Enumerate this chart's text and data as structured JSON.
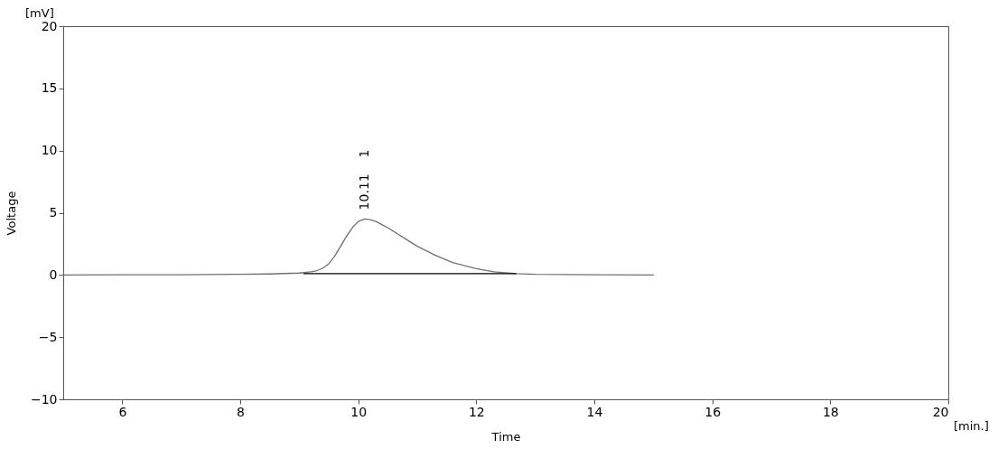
{
  "chart_data": {
    "type": "line",
    "xlabel": "Time",
    "ylabel": "Voltage",
    "xlim": [
      5,
      20
    ],
    "xticks": [
      6,
      8,
      10,
      12,
      14,
      16,
      18,
      20
    ],
    "ylim": [
      -10,
      20
    ],
    "yticks": [
      -10,
      -5,
      0,
      5,
      10,
      15,
      20
    ],
    "grid": false,
    "marker": "none",
    "line_style": "solid",
    "series": [
      {
        "color": "#707070",
        "x": [
          5,
          6,
          7,
          8,
          8.5,
          9,
          9.2,
          9.3,
          9.4,
          9.5,
          9.6,
          9.7,
          9.8,
          9.9,
          10.0,
          10.11,
          10.2,
          10.3,
          10.4,
          10.5,
          10.65,
          10.8,
          11.0,
          11.3,
          11.6,
          12.0,
          12.3,
          12.67,
          13,
          14,
          15
        ],
        "values": [
          0,
          0.01,
          0.02,
          0.05,
          0.08,
          0.15,
          0.25,
          0.35,
          0.55,
          0.9,
          1.5,
          2.3,
          3.1,
          3.8,
          4.3,
          4.5,
          4.45,
          4.3,
          4.05,
          3.8,
          3.35,
          2.9,
          2.3,
          1.6,
          1.0,
          0.5,
          0.25,
          0.1,
          0.05,
          0.02,
          0
        ]
      },
      {
        "color": "#000000",
        "x": [
          9.08,
          12.67
        ],
        "values": [
          0.1,
          0.1
        ]
      }
    ],
    "annotations": [
      {
        "text": "10.11",
        "x": 10.11,
        "y": 4.5
      },
      "1",
      "[mV]",
      "[min.]"
    ]
  }
}
